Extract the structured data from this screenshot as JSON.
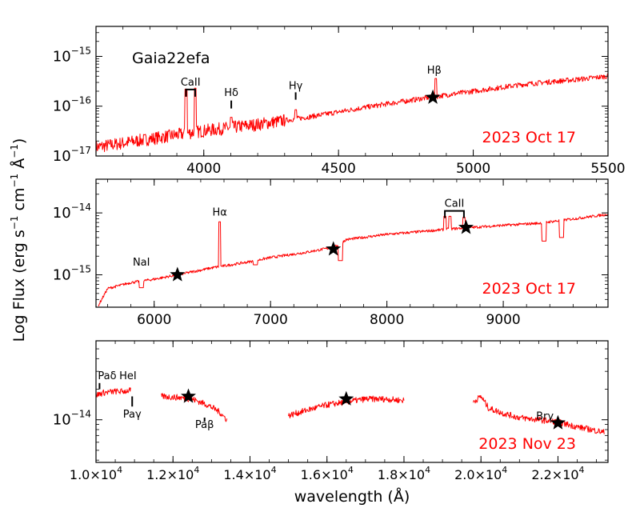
{
  "figure": {
    "ylabel_main": "Log Flux (erg s",
    "ylabel_sup1": "−1",
    "ylabel_mid": " cm",
    "ylabel_sup2": "−1",
    "ylabel_ang": " Å",
    "ylabel_sup3": "−1",
    "ylabel_close": ")",
    "xlabel": "wavelength (Å)"
  },
  "colors": {
    "spectrum": "#ff0000",
    "date": "#ff0000",
    "axes": "#000000"
  },
  "chart_data": [
    {
      "type": "line",
      "panel": "top",
      "object_label": "Gaia22efa",
      "date_label": "2023 Oct 17",
      "xlim": [
        3600,
        5500
      ],
      "ylog": true,
      "ylim": [
        1e-17,
        4e-15
      ],
      "xticks": [
        {
          "v": 4000,
          "label": "4000"
        },
        {
          "v": 4500,
          "label": "4500"
        },
        {
          "v": 5000,
          "label": "5000"
        },
        {
          "v": 5500,
          "label": "5500"
        }
      ],
      "yticks": [
        {
          "v": 1e-17,
          "base": "10",
          "exp": "−17"
        },
        {
          "v": 1e-16,
          "base": "10",
          "exp": "−16"
        },
        {
          "v": 1e-15,
          "base": "10",
          "exp": "−15"
        }
      ],
      "continuum": [
        [
          3600,
          1.5e-17
        ],
        [
          3800,
          2.2e-17
        ],
        [
          4000,
          3.2e-17
        ],
        [
          4200,
          4.3e-17
        ],
        [
          4400,
          6.2e-17
        ],
        [
          4600,
          9.5e-17
        ],
        [
          4800,
          1.4e-16
        ],
        [
          5000,
          2e-16
        ],
        [
          5200,
          2.8e-16
        ],
        [
          5400,
          3.5e-16
        ],
        [
          5500,
          4e-16
        ]
      ],
      "emission_lines": [
        [
          3934,
          2.2e-16
        ],
        [
          3968,
          2.3e-16
        ],
        [
          4102,
          6e-17
        ],
        [
          4341,
          8.5e-17
        ],
        [
          4861,
          3.6e-16
        ]
      ],
      "annotations": [
        {
          "text": "CaII",
          "x": 3951,
          "bracket": [
            3934,
            3968
          ],
          "y": 2.6e-16
        },
        {
          "text": "Hδ",
          "x": 4102,
          "tick_from": 9e-17,
          "tick_to": 1.3e-16,
          "y": 1.6e-16
        },
        {
          "text": "Hγ",
          "x": 4341,
          "tick_from": 1.35e-16,
          "tick_to": 1.9e-16,
          "y": 2.2e-16
        },
        {
          "text": "Hβ",
          "x": 4855,
          "y": 4.5e-16
        }
      ],
      "stars": [
        {
          "x": 4850,
          "y": 1.5e-16
        }
      ]
    },
    {
      "type": "line",
      "panel": "middle",
      "date_label": "2023 Oct 17",
      "xlim": [
        5500,
        9900
      ],
      "ylog": true,
      "ylim": [
        3e-16,
        3.5e-14
      ],
      "xticks": [
        {
          "v": 6000,
          "label": "6000"
        },
        {
          "v": 7000,
          "label": "7000"
        },
        {
          "v": 8000,
          "label": "8000"
        },
        {
          "v": 9000,
          "label": "9000"
        }
      ],
      "yticks": [
        {
          "v": 1e-15,
          "base": "10",
          "exp": "−15"
        },
        {
          "v": 1e-14,
          "base": "10",
          "exp": "−14"
        }
      ],
      "continuum": [
        [
          5520,
          3.2e-16
        ],
        [
          5600,
          6e-16
        ],
        [
          5800,
          7.5e-16
        ],
        [
          6000,
          8.5e-16
        ],
        [
          6200,
          1e-15
        ],
        [
          6500,
          1.3e-15
        ],
        [
          6800,
          1.6e-15
        ],
        [
          7000,
          1.9e-15
        ],
        [
          7300,
          2.3e-15
        ],
        [
          7550,
          2.8e-15
        ],
        [
          7650,
          3.7e-15
        ],
        [
          8000,
          4.5e-15
        ],
        [
          8300,
          5e-15
        ],
        [
          8600,
          5.6e-15
        ],
        [
          9000,
          6.3e-15
        ],
        [
          9300,
          6.8e-15
        ],
        [
          9600,
          8e-15
        ],
        [
          9900,
          9.5e-15
        ]
      ],
      "emission_lines": [
        [
          6563,
          7.2e-15
        ],
        [
          8498,
          8.8e-15
        ],
        [
          8542,
          8.8e-15
        ],
        [
          8662,
          8.5e-15
        ]
      ],
      "absorption": [
        [
          5890,
          6.2e-16
        ],
        [
          7600,
          1.7e-15
        ],
        [
          6870,
          1.45e-15
        ],
        [
          9350,
          3.5e-15
        ],
        [
          9500,
          4e-15
        ]
      ],
      "annotations": [
        {
          "text": "NaI",
          "x": 5890,
          "y": 1.4e-15
        },
        {
          "text": "Hα",
          "x": 6563,
          "y": 9e-15
        },
        {
          "text": "CaII",
          "x": 8580,
          "bracket": [
            8498,
            8662
          ],
          "y": 1.25e-14
        }
      ],
      "stars": [
        {
          "x": 6200,
          "y": 1e-15
        },
        {
          "x": 7540,
          "y": 2.6e-15
        },
        {
          "x": 8680,
          "y": 5.8e-15
        }
      ]
    },
    {
      "type": "line",
      "panel": "bottom",
      "date_label": "2023 Nov 23",
      "xlim": [
        10000,
        23300
      ],
      "ylog": true,
      "ylim": [
        3.8e-15,
        6e-14
      ],
      "xticks": [
        {
          "v": 10000,
          "mant": "1.0",
          "exp": "4"
        },
        {
          "v": 12000,
          "mant": "1.2",
          "exp": "4"
        },
        {
          "v": 14000,
          "mant": "1.4",
          "exp": "4"
        },
        {
          "v": 16000,
          "mant": "1.6",
          "exp": "4"
        },
        {
          "v": 18000,
          "mant": "1.8",
          "exp": "4"
        },
        {
          "v": 20000,
          "mant": "2.0",
          "exp": "4"
        },
        {
          "v": 22000,
          "mant": "2.2",
          "exp": "4"
        }
      ],
      "yticks": [
        {
          "v": 1e-14,
          "base": "10",
          "exp": "−14"
        }
      ],
      "segments": [
        [
          [
            10000,
            1.75e-14
          ],
          [
            10200,
            1.85e-14
          ],
          [
            10500,
            1.9e-14
          ],
          [
            10700,
            1.9e-14
          ],
          [
            10900,
            1.95e-14
          ]
        ],
        [
          [
            11700,
            1.7e-14
          ],
          [
            12200,
            1.65e-14
          ],
          [
            12500,
            1.6e-14
          ],
          [
            12900,
            1.4e-14
          ],
          [
            13200,
            1.2e-14
          ],
          [
            13400,
            1e-14
          ]
        ],
        [
          [
            15000,
            1.1e-14
          ],
          [
            15500,
            1.25e-14
          ],
          [
            16000,
            1.4e-14
          ],
          [
            16500,
            1.5e-14
          ],
          [
            17000,
            1.6e-14
          ],
          [
            17500,
            1.6e-14
          ],
          [
            18000,
            1.55e-14
          ]
        ],
        [
          [
            19800,
            1.5e-14
          ],
          [
            20000,
            1.7e-14
          ],
          [
            20200,
            1.3e-14
          ],
          [
            20600,
            1.15e-14
          ],
          [
            21000,
            1.05e-14
          ],
          [
            21500,
            1e-14
          ],
          [
            22000,
            9.5e-15
          ],
          [
            22500,
            8.5e-15
          ],
          [
            23000,
            7.8e-15
          ],
          [
            23200,
            7.5e-15
          ]
        ]
      ],
      "annotations": [
        {
          "text": "Paδ",
          "x": 10050,
          "tick_from": 2e-14,
          "tick_to": 2.3e-14,
          "y": 2.5e-14,
          "anchor": "start"
        },
        {
          "text": "HeI",
          "x": 10830,
          "y": 2.5e-14
        },
        {
          "text": "Paγ",
          "x": 10940,
          "tick_from": 1.35e-14,
          "tick_to": 1.7e-14,
          "y": 1.05e-14
        },
        {
          "text": "Paβ",
          "x": 12820,
          "tick_from": 9.6e-15,
          "tick_to": 1.05e-14,
          "y": 8.3e-15
        },
        {
          "text": "Brγ",
          "x": 21660,
          "y": 1e-14
        }
      ],
      "stars": [
        {
          "x": 12400,
          "y": 1.7e-14
        },
        {
          "x": 16500,
          "y": 1.6e-14
        },
        {
          "x": 22000,
          "y": 9.3e-15
        }
      ]
    }
  ]
}
